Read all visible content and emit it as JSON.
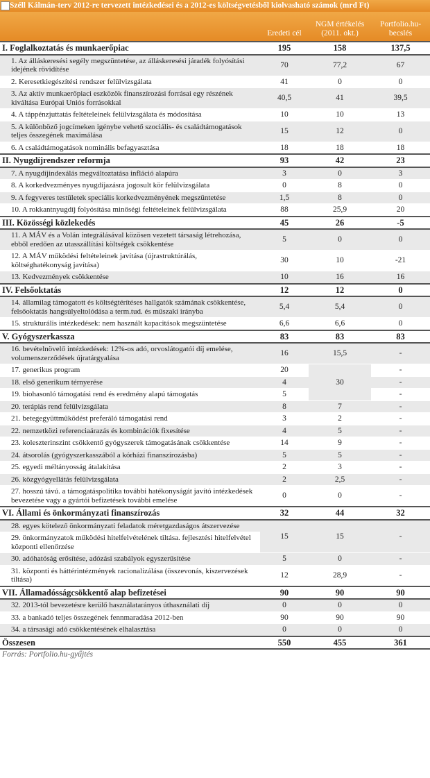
{
  "header": {
    "title": "Széll Kálmán-terv 2012-re tervezett intézkedései és a 2012-es költségvetésből kiolvasható számok (mrd Ft)",
    "columns": [
      "Eredeti cél",
      "NGM értékelés (2011. okt.)",
      "Portfolio.hu-becslés"
    ]
  },
  "table": {
    "rows": [
      {
        "label": "I. Foglalkoztatás és munkaerőpiac",
        "values": [
          "195",
          "158",
          "137,5"
        ]
      },
      {
        "label": "1. Az álláskeresési segély megszüntetése, az álláskeresési járadék folyósítási idejének rövidítése",
        "values": [
          "70",
          "77,2",
          "67"
        ]
      },
      {
        "label": "2. Keresetkiegészítési rendszer felülvizsgálata",
        "values": [
          "41",
          "0",
          "0"
        ]
      },
      {
        "label": "3. Az aktív munkaerőpiaci eszközök finanszírozási forrásai egy részének kiváltása Európai Uniós forrásokkal",
        "values": [
          "40,5",
          "41",
          "39,5"
        ]
      },
      {
        "label": "4. A táppénzjuttatás feltételeinek felülvizsgálata és módosítása",
        "values": [
          "10",
          "10",
          "13"
        ]
      },
      {
        "label": "5. A különböző jogcímeken igénybe vehető szociális- és családtámogatások teljes összegének maximálása",
        "values": [
          "15",
          "12",
          "0"
        ]
      },
      {
        "label": "6. A családtámogatások nominális befagyasztása",
        "values": [
          "18",
          "18",
          "18"
        ]
      },
      {
        "label": "II. Nyugdíjrendszer reformja",
        "values": [
          "93",
          "42",
          "23"
        ]
      },
      {
        "label": "7. A nyugdíjindexálás megváltoztatása infláció alapúra",
        "values": [
          "3",
          "0",
          "3"
        ]
      },
      {
        "label": "8. A korkedvezményes nyugdíjazásra jogosult kör felülvizsgálata",
        "values": [
          "0",
          "8",
          "0"
        ]
      },
      {
        "label": "9. A fegyveres testületek speciális korkedvezményének megszüntetése",
        "values": [
          "1,5",
          "8",
          "0"
        ]
      },
      {
        "label": "10. A rokkantnyugdíj folyósítása minőségi feltételeinek felülvizsgálata",
        "values": [
          "88",
          "25,9",
          "20"
        ]
      },
      {
        "label": "III. Közösségi közlekedés",
        "values": [
          "45",
          "26",
          "-5"
        ]
      },
      {
        "label": "11. A MÁV és a Volán integrálásával közösen vezetett társaság létrehozása, ebből eredően az utasszállítási költségek csökkentése",
        "values": [
          "5",
          "0",
          "0"
        ]
      },
      {
        "label": "12. A MÁV működési feltételeinek javítása (újrastruktúrálás, költséghatékonyság javítása)",
        "values": [
          "30",
          "10",
          "-21"
        ]
      },
      {
        "label": "13. Kedvezmények csökkentése",
        "values": [
          "10",
          "16",
          "16"
        ]
      },
      {
        "label": "IV. Felsőoktatás",
        "values": [
          "12",
          "12",
          "0"
        ]
      },
      {
        "label": "14. államilag támogatott és költségtérítéses hallgatók számának csökkentése, felsőoktatás hangsúlyeltolódása a term.tud. és műszaki irányba",
        "values": [
          "5,4",
          "5,4",
          "0"
        ]
      },
      {
        "label": "15. strukturális intézkedések: nem használt kapacitások megszüntetése",
        "values": [
          "6,6",
          "6,6",
          "0"
        ]
      },
      {
        "label": "V. Gyógyszerkassza",
        "values": [
          "83",
          "83",
          "83"
        ]
      },
      {
        "label": "16. bevételnövelő intézkedések: 12%-os adó, orvoslátogatói díj emelése, volumenszerződések újratárgyalása",
        "values": [
          "16",
          "15,5",
          "-"
        ]
      },
      {
        "label": "17. generikus program",
        "values": [
          "20",
          "30",
          "-"
        ]
      },
      {
        "label": "18. első generikum térnyerése",
        "values": [
          "4",
          "-"
        ]
      },
      {
        "label": "19. biohasonló támogatási rend és eredmény alapú támogatás",
        "values": [
          "5",
          "-"
        ]
      },
      {
        "label": "20. terápiás rend felülvizsgálata",
        "values": [
          "8",
          "7",
          "-"
        ]
      },
      {
        "label": "21. betegegyüttműködést preferáló támogatási rend",
        "values": [
          "3",
          "2",
          "-"
        ]
      },
      {
        "label": "22. nemzetközi referenciaárazás és kombinációk fixesítése",
        "values": [
          "4",
          "5",
          "-"
        ]
      },
      {
        "label": "23. koleszterinszint csökkentő gyógyszerek támogatásának csökkentése",
        "values": [
          "14",
          "9",
          "-"
        ]
      },
      {
        "label": "24. átsorolás (gyógyszerkasszából a kórházi finanszírozásba)",
        "values": [
          "5",
          "5",
          "-"
        ]
      },
      {
        "label": "25. egyedi méltányosság átalakítása",
        "values": [
          "2",
          "3",
          "-"
        ]
      },
      {
        "label": "26. közgyógyellátás felülvizsgálata",
        "values": [
          "2",
          "2,5",
          "-"
        ]
      },
      {
        "label": "27. hosszú távú. a támogatáspolitika további hatékonyságát javító intézkedések bevezetése vagy a gyártói befizetések további emelése",
        "values": [
          "0",
          "0",
          "-"
        ]
      },
      {
        "label": "VI. Állami és önkormányzati finanszírozás",
        "values": [
          "32",
          "44",
          "32"
        ]
      },
      {
        "label": "28. egyes kötelező önkormányzati feladatok méretgazdaságos átszervezése",
        "values": [
          "15",
          "15",
          "-"
        ]
      },
      {
        "label": "29. önkormányzatok működési hitelfelvételének tiltása. fejlesztési hitelfelvétel központi ellenőrzése",
        "values": []
      },
      {
        "label": "30. adóhatóság erősítése, adózási szabályok egyszerűsítése",
        "values": [
          "5",
          "0",
          "-"
        ]
      },
      {
        "label": "31. központi és háttérintézmények racionalizálása (összevonás, kiszervezések tiltása)",
        "values": [
          "12",
          "28,9",
          "-"
        ]
      },
      {
        "label": "VII. Államadósságcsökkentő alap befizetései",
        "values": [
          "90",
          "90",
          "90"
        ]
      },
      {
        "label": "32. 2013-tól bevezetésre kerülő használatarányos úthasználati díj",
        "values": [
          "0",
          "0",
          "0"
        ]
      },
      {
        "label": "33. a bankadó teljes összegének fennmaradása 2012-ben",
        "values": [
          "90",
          "90",
          "90"
        ]
      },
      {
        "label": "34. a társasági adó csökkentésének elhalasztása",
        "values": [
          "0",
          "0",
          "0"
        ]
      },
      {
        "label": "Összesen",
        "values": [
          "550",
          "455",
          "361"
        ]
      }
    ]
  },
  "footer": {
    "source": "Forrás: Portfolio.hu-gyűjtés"
  }
}
